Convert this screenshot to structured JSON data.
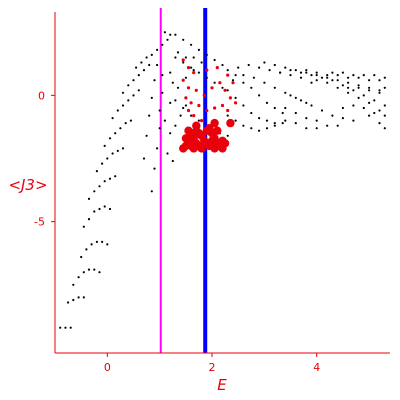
{
  "chart_data": {
    "type": "scatter",
    "xlabel": "E",
    "ylabel": "<J3>",
    "xlim": [
      -1.0,
      5.4
    ],
    "ylim": [
      -10.2,
      3.3
    ],
    "x_ticks": [
      0,
      2,
      4
    ],
    "y_ticks": [
      0,
      -5
    ],
    "axis_color": "#e8000b",
    "vertical_lines": [
      {
        "x": 1.02,
        "color": "#ff00ff"
      },
      {
        "x": 1.87,
        "color": "#0000ff"
      }
    ],
    "series": [
      {
        "color": "#000000",
        "marker": "small-dot",
        "points": [
          [
            -0.9,
            -9.2
          ],
          [
            -0.8,
            -9.2
          ],
          [
            -0.7,
            -9.2
          ],
          [
            -0.75,
            -8.2
          ],
          [
            -0.65,
            -8.1
          ],
          [
            -0.55,
            -8.0
          ],
          [
            -0.45,
            -8.0
          ],
          [
            -0.65,
            -7.5
          ],
          [
            -0.55,
            -7.2
          ],
          [
            -0.45,
            -7.0
          ],
          [
            -0.35,
            -6.9
          ],
          [
            -0.25,
            -6.9
          ],
          [
            -0.15,
            -7.0
          ],
          [
            -0.5,
            -6.4
          ],
          [
            -0.4,
            -6.1
          ],
          [
            -0.3,
            -5.9
          ],
          [
            -0.2,
            -5.8
          ],
          [
            -0.1,
            -5.8
          ],
          [
            0.0,
            -5.9
          ],
          [
            -0.45,
            -5.2
          ],
          [
            -0.35,
            -4.9
          ],
          [
            -0.25,
            -4.6
          ],
          [
            -0.15,
            -4.5
          ],
          [
            -0.05,
            -4.4
          ],
          [
            0.05,
            -4.5
          ],
          [
            -0.35,
            -4.1
          ],
          [
            -0.25,
            -3.8
          ],
          [
            -0.15,
            -3.6
          ],
          [
            -0.05,
            -3.4
          ],
          [
            0.05,
            -3.3
          ],
          [
            0.15,
            -3.2
          ],
          [
            -0.2,
            -3.0
          ],
          [
            -0.1,
            -2.7
          ],
          [
            0.0,
            -2.5
          ],
          [
            0.1,
            -2.3
          ],
          [
            0.2,
            -2.2
          ],
          [
            0.3,
            -2.1
          ],
          [
            -0.05,
            -2.0
          ],
          [
            0.05,
            -1.7
          ],
          [
            0.15,
            -1.5
          ],
          [
            0.25,
            -1.3
          ],
          [
            0.35,
            -1.1
          ],
          [
            0.45,
            -1.0
          ],
          [
            0.1,
            -0.9
          ],
          [
            0.2,
            -0.6
          ],
          [
            0.3,
            -0.4
          ],
          [
            0.4,
            -0.2
          ],
          [
            0.5,
            0.0
          ],
          [
            0.6,
            0.2
          ],
          [
            0.3,
            0.1
          ],
          [
            0.4,
            0.4
          ],
          [
            0.5,
            0.6
          ],
          [
            0.6,
            0.8
          ],
          [
            0.7,
            1.0
          ],
          [
            0.8,
            1.2
          ],
          [
            0.55,
            1.1
          ],
          [
            0.65,
            1.3
          ],
          [
            0.75,
            1.5
          ],
          [
            0.85,
            1.6
          ],
          [
            0.95,
            1.8
          ],
          [
            1.05,
            2.0
          ],
          [
            1.15,
            2.2
          ],
          [
            1.2,
            2.4
          ],
          [
            0.85,
            -3.8
          ],
          [
            0.9,
            -2.9
          ],
          [
            0.95,
            -2.1
          ],
          [
            1.0,
            -1.3
          ],
          [
            1.0,
            -0.6
          ],
          [
            1.05,
            0.1
          ],
          [
            1.05,
            0.8
          ],
          [
            0.7,
            -2.5
          ],
          [
            0.75,
            -1.6
          ],
          [
            0.8,
            -0.8
          ],
          [
            0.85,
            -0.1
          ],
          [
            0.9,
            0.6
          ],
          [
            0.95,
            1.2
          ],
          [
            1.1,
            2.5
          ],
          [
            1.3,
            2.4
          ],
          [
            1.45,
            2.2
          ],
          [
            1.6,
            2.0
          ],
          [
            1.75,
            1.8
          ],
          [
            1.9,
            1.6
          ],
          [
            2.05,
            1.4
          ],
          [
            2.2,
            1.2
          ],
          [
            1.2,
            -1.5
          ],
          [
            1.3,
            -1.2
          ],
          [
            1.4,
            -0.8
          ],
          [
            1.5,
            -0.4
          ],
          [
            1.35,
            0.3
          ],
          [
            1.5,
            0.7
          ],
          [
            1.65,
            1.0
          ],
          [
            1.3,
            1.5
          ],
          [
            1.45,
            1.3
          ],
          [
            1.6,
            1.1
          ],
          [
            1.75,
            0.9
          ],
          [
            1.9,
            0.7
          ],
          [
            2.05,
            0.5
          ],
          [
            2.2,
            0.3
          ],
          [
            1.3,
            -0.2
          ],
          [
            1.45,
            -0.5
          ],
          [
            1.6,
            -0.8
          ],
          [
            1.75,
            -1.0
          ],
          [
            2.0,
            -1.3
          ],
          [
            2.15,
            -1.5
          ],
          [
            2.3,
            -1.6
          ],
          [
            2.3,
            1.0
          ],
          [
            2.45,
            0.8
          ],
          [
            2.6,
            0.5
          ],
          [
            2.75,
            0.3
          ],
          [
            2.9,
            0.0
          ],
          [
            3.05,
            -0.3
          ],
          [
            3.2,
            -0.5
          ],
          [
            3.35,
            -0.7
          ],
          [
            2.3,
            0.2
          ],
          [
            2.45,
            -0.1
          ],
          [
            2.6,
            -0.4
          ],
          [
            2.75,
            -0.7
          ],
          [
            2.9,
            -0.9
          ],
          [
            3.05,
            -1.0
          ],
          [
            3.2,
            -1.1
          ],
          [
            2.3,
            -0.8
          ],
          [
            2.45,
            -1.0
          ],
          [
            2.6,
            -1.2
          ],
          [
            2.75,
            -1.3
          ],
          [
            2.9,
            -1.4
          ],
          [
            3.05,
            -1.3
          ],
          [
            3.2,
            -1.2
          ],
          [
            3.35,
            -1.1
          ],
          [
            2.5,
            1.1
          ],
          [
            2.7,
            1.2
          ],
          [
            2.9,
            1.1
          ],
          [
            3.1,
            1.0
          ],
          [
            3.3,
            0.9
          ],
          [
            3.5,
            0.8
          ],
          [
            3.7,
            0.7
          ],
          [
            3.9,
            0.5
          ],
          [
            2.4,
            0.6
          ],
          [
            2.6,
            0.8
          ],
          [
            2.8,
            0.7
          ],
          [
            3.0,
            0.5
          ],
          [
            3.2,
            0.3
          ],
          [
            3.4,
            0.1
          ],
          [
            3.6,
            -0.1
          ],
          [
            3.8,
            -0.3
          ],
          [
            3.5,
            0.0
          ],
          [
            3.7,
            -0.2
          ],
          [
            3.9,
            -0.4
          ],
          [
            4.1,
            -0.6
          ],
          [
            4.3,
            -0.8
          ],
          [
            4.5,
            -0.9
          ],
          [
            4.7,
            -1.0
          ],
          [
            3.4,
            -0.5
          ],
          [
            3.6,
            -0.7
          ],
          [
            3.8,
            -0.9
          ],
          [
            4.0,
            -1.0
          ],
          [
            4.2,
            -1.2
          ],
          [
            4.4,
            -1.2
          ],
          [
            3.4,
            -1.0
          ],
          [
            3.6,
            -1.1
          ],
          [
            3.8,
            -1.3
          ],
          [
            4.0,
            -1.3
          ],
          [
            3.0,
            1.3
          ],
          [
            3.2,
            1.2
          ],
          [
            3.4,
            1.1
          ],
          [
            3.6,
            1.0
          ],
          [
            3.8,
            0.9
          ],
          [
            4.0,
            0.8
          ],
          [
            4.2,
            0.7
          ],
          [
            4.4,
            0.6
          ],
          [
            4.6,
            0.5
          ],
          [
            4.8,
            0.4
          ],
          [
            5.0,
            0.3
          ],
          [
            5.2,
            0.2
          ],
          [
            3.3,
            0.9
          ],
          [
            3.5,
            1.0
          ],
          [
            3.7,
            0.9
          ],
          [
            3.9,
            0.8
          ],
          [
            4.1,
            0.7
          ],
          [
            4.3,
            0.6
          ],
          [
            4.5,
            0.4
          ],
          [
            4.7,
            0.2
          ],
          [
            4.9,
            0.0
          ],
          [
            5.1,
            -0.2
          ],
          [
            5.3,
            -0.4
          ],
          [
            3.8,
            1.0
          ],
          [
            4.0,
            0.9
          ],
          [
            4.2,
            0.8
          ],
          [
            4.4,
            0.8
          ],
          [
            4.6,
            0.7
          ],
          [
            4.8,
            0.7
          ],
          [
            5.0,
            0.6
          ],
          [
            5.2,
            0.6
          ],
          [
            4.0,
            0.6
          ],
          [
            4.2,
            0.5
          ],
          [
            4.4,
            0.3
          ],
          [
            4.6,
            0.1
          ],
          [
            4.8,
            -0.1
          ],
          [
            5.0,
            -0.3
          ],
          [
            5.2,
            -0.6
          ],
          [
            4.3,
            0.9
          ],
          [
            4.5,
            0.9
          ],
          [
            4.7,
            0.8
          ],
          [
            4.9,
            0.8
          ],
          [
            5.1,
            0.8
          ],
          [
            5.3,
            0.7
          ],
          [
            4.5,
            -0.5
          ],
          [
            4.7,
            -0.4
          ],
          [
            4.9,
            -0.5
          ],
          [
            5.1,
            -0.7
          ],
          [
            5.3,
            -0.8
          ],
          [
            4.6,
            0.3
          ],
          [
            4.8,
            0.3
          ],
          [
            5.0,
            0.2
          ],
          [
            5.2,
            0.1
          ],
          [
            5.3,
            0.3
          ],
          [
            5.0,
            -0.8
          ],
          [
            5.2,
            -1.1
          ],
          [
            5.3,
            -1.3
          ],
          [
            1.2,
            0.9
          ],
          [
            1.35,
            1.7
          ],
          [
            1.5,
            1.5
          ],
          [
            1.65,
            1.5
          ],
          [
            1.8,
            1.3
          ],
          [
            1.15,
            -2.3
          ],
          [
            1.25,
            -2.6
          ],
          [
            1.1,
            -1.0
          ],
          [
            1.2,
            -0.3
          ],
          [
            1.25,
            0.5
          ]
        ]
      },
      {
        "color": "#e8000b",
        "marker": "large-dot",
        "points": [
          [
            1.55,
            -1.4
          ],
          [
            1.6,
            -1.6
          ],
          [
            1.65,
            -1.7
          ],
          [
            1.7,
            -1.4
          ],
          [
            1.75,
            -1.5
          ],
          [
            1.55,
            -1.9
          ],
          [
            1.6,
            -2.0
          ],
          [
            1.65,
            -2.1
          ],
          [
            1.7,
            -1.9
          ],
          [
            1.75,
            -2.0
          ],
          [
            1.8,
            -2.1
          ],
          [
            1.85,
            -1.8
          ],
          [
            1.95,
            -1.3
          ],
          [
            2.0,
            -1.5
          ],
          [
            2.05,
            -1.7
          ],
          [
            2.1,
            -1.9
          ],
          [
            2.15,
            -2.0
          ],
          [
            2.05,
            -2.1
          ],
          [
            1.95,
            -2.0
          ],
          [
            1.9,
            -1.9
          ],
          [
            2.0,
            -1.8
          ],
          [
            2.2,
            -1.8
          ],
          [
            2.25,
            -1.9
          ],
          [
            2.2,
            -2.1
          ],
          [
            1.5,
            -2.0
          ],
          [
            1.45,
            -2.1
          ],
          [
            1.5,
            -1.7
          ],
          [
            2.05,
            -1.1
          ],
          [
            2.35,
            -1.1
          ],
          [
            1.9,
            -1.4
          ],
          [
            2.1,
            -1.4
          ],
          [
            1.7,
            -1.2
          ],
          [
            1.8,
            -1.6
          ]
        ]
      },
      {
        "color": "#e8000b",
        "marker": "small-dot",
        "points": [
          [
            1.45,
            1.4
          ],
          [
            1.55,
            1.1
          ],
          [
            1.65,
            0.9
          ],
          [
            1.45,
            0.6
          ],
          [
            1.55,
            0.3
          ],
          [
            1.7,
            0.2
          ],
          [
            1.85,
            0.0
          ],
          [
            2.0,
            0.3
          ],
          [
            2.15,
            0.5
          ],
          [
            2.25,
            0.2
          ],
          [
            2.35,
            -0.1
          ],
          [
            2.2,
            -0.4
          ],
          [
            2.05,
            -0.5
          ],
          [
            1.9,
            -0.6
          ],
          [
            1.75,
            -0.4
          ],
          [
            1.6,
            -0.3
          ],
          [
            1.5,
            -0.1
          ],
          [
            1.65,
            -0.8
          ],
          [
            1.8,
            -1.0
          ],
          [
            2.3,
            -0.6
          ],
          [
            2.4,
            0.5
          ],
          [
            1.9,
            1.0
          ],
          [
            2.1,
            1.1
          ],
          [
            2.3,
            0.8
          ],
          [
            1.55,
            -0.6
          ],
          [
            2.45,
            -0.3
          ]
        ]
      }
    ]
  }
}
